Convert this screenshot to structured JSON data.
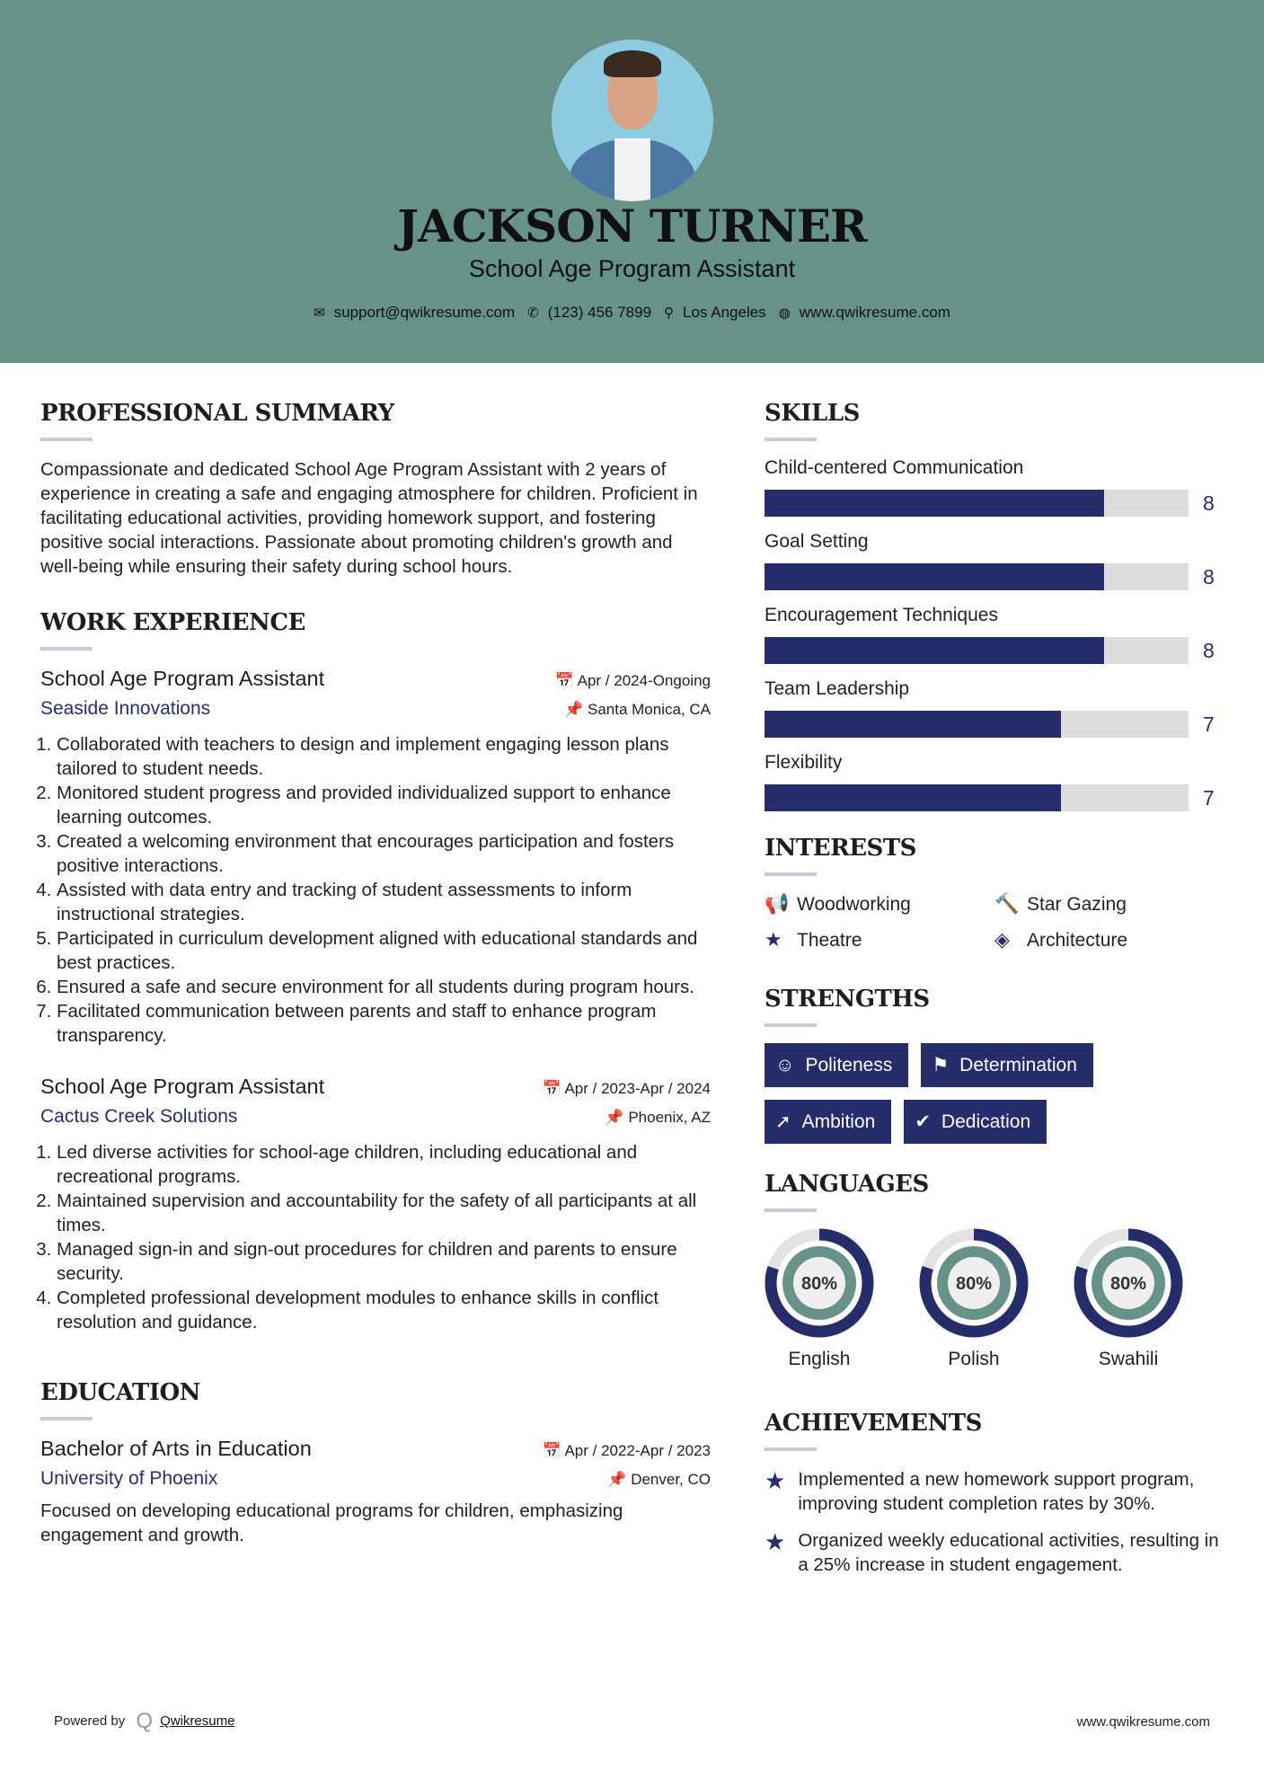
{
  "header": {
    "name": "JACKSON TURNER",
    "role": "School Age Program Assistant",
    "contact": [
      {
        "icon": "envelope-icon",
        "glyph": "✉",
        "text": "support@qwikresume.com"
      },
      {
        "icon": "phone-icon",
        "glyph": "✆",
        "text": "(123) 456 7899"
      },
      {
        "icon": "map-pin-icon",
        "glyph": "⚲",
        "text": "Los Angeles"
      },
      {
        "icon": "globe-icon",
        "glyph": "◍",
        "text": "www.qwikresume.com"
      }
    ]
  },
  "summary": {
    "title": "PROFESSIONAL SUMMARY",
    "text": "Compassionate and dedicated School Age Program Assistant with 2 years of experience in creating a safe and engaging atmosphere for children. Proficient in facilitating educational activities, providing homework support, and fostering positive social interactions. Passionate about promoting children's growth and well-being while ensuring their safety during school hours."
  },
  "experience": {
    "title": "WORK EXPERIENCE",
    "jobs": [
      {
        "title": "School Age Program Assistant",
        "date": "Apr / 2024-Ongoing",
        "company": "Seaside Innovations",
        "location": "Santa Monica, CA",
        "items": [
          "Collaborated with teachers to design and implement engaging lesson plans tailored to student needs.",
          "Monitored student progress and provided individualized support to enhance learning outcomes.",
          "Created a welcoming environment that encourages participation and fosters positive interactions.",
          "Assisted with data entry and tracking of student assessments to inform instructional strategies.",
          "Participated in curriculum development aligned with educational standards and best practices.",
          "Ensured a safe and secure environment for all students during program hours.",
          "Facilitated communication between parents and staff to enhance program transparency."
        ]
      },
      {
        "title": "School Age Program Assistant",
        "date": "Apr / 2023-Apr / 2024",
        "company": "Cactus Creek Solutions",
        "location": "Phoenix, AZ",
        "items": [
          "Led diverse activities for school-age children, including educational and recreational programs.",
          "Maintained supervision and accountability for the safety of all participants at all times.",
          "Managed sign-in and sign-out procedures for children and parents to ensure security.",
          "Completed professional development modules to enhance skills in conflict resolution and guidance."
        ]
      }
    ]
  },
  "education": {
    "title": "EDUCATION",
    "degree": "Bachelor of Arts in Education",
    "date": "Apr / 2022-Apr / 2023",
    "school": "University of Phoenix",
    "location": "Denver, CO",
    "text": "Focused on developing educational programs for children, emphasizing engagement and growth."
  },
  "skills": {
    "title": "SKILLS",
    "max": 10,
    "items": [
      {
        "name": "Child-centered Communication",
        "value": 8
      },
      {
        "name": "Goal Setting",
        "value": 8
      },
      {
        "name": "Encouragement Techniques",
        "value": 8
      },
      {
        "name": "Team Leadership",
        "value": 7
      },
      {
        "name": "Flexibility",
        "value": 7
      }
    ]
  },
  "interests": {
    "title": "INTERESTS",
    "items": [
      {
        "icon": "bullhorn-icon",
        "glyph": "📢",
        "label": "Woodworking"
      },
      {
        "icon": "gavel-icon",
        "glyph": "🔨",
        "label": "Star Gazing"
      },
      {
        "icon": "star-icon",
        "glyph": "★",
        "label": "Theatre"
      },
      {
        "icon": "ticket-icon",
        "glyph": "◈",
        "label": "Architecture"
      }
    ]
  },
  "strengths": {
    "title": "STRENGTHS",
    "items": [
      {
        "icon": "smile-icon",
        "glyph": "☺",
        "label": "Politeness"
      },
      {
        "icon": "flag-icon",
        "glyph": "⚑",
        "label": "Determination"
      },
      {
        "icon": "rocket-icon",
        "glyph": "➚",
        "label": "Ambition"
      },
      {
        "icon": "check-circle-icon",
        "glyph": "✔",
        "label": "Dedication"
      }
    ]
  },
  "languages": {
    "title": "LANGUAGES",
    "items": [
      {
        "name": "English",
        "percent": 80,
        "label": "80%"
      },
      {
        "name": "Polish",
        "percent": 80,
        "label": "80%"
      },
      {
        "name": "Swahili",
        "percent": 80,
        "label": "80%"
      }
    ]
  },
  "achievements": {
    "title": "ACHIEVEMENTS",
    "items": [
      "Implemented a new homework support program, improving student completion rates by 30%.",
      "Organized weekly educational activities, resulting in a 25% increase in student engagement."
    ]
  },
  "footer": {
    "powered": "Powered by",
    "brand": "Qwikresume",
    "url": "www.qwikresume.com"
  },
  "colors": {
    "header": "#66928a",
    "accent": "#252e6b",
    "bar_bg": "#dddddd"
  }
}
